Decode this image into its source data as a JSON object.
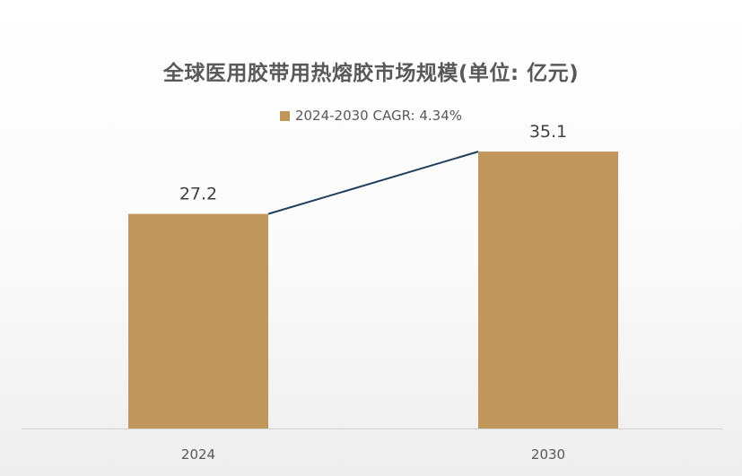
{
  "chart_data": {
    "type": "bar",
    "title": "全球医用胶带用热熔胶市场规模(单位: 亿元)",
    "categories": [
      "2024",
      "2030"
    ],
    "series": [
      {
        "name": "2024-2030 CAGR: 4.34%",
        "values": [
          27.2,
          35.1
        ]
      }
    ],
    "data_labels": [
      "27.2",
      "35.1"
    ],
    "connector_line": true,
    "ylim": [
      0,
      40
    ],
    "grid": false,
    "legend_position": "top",
    "colors": {
      "bar": "#C0965A",
      "connector": "#1F3F5E",
      "text": "#595959",
      "axis": "#D0D0D0"
    }
  }
}
